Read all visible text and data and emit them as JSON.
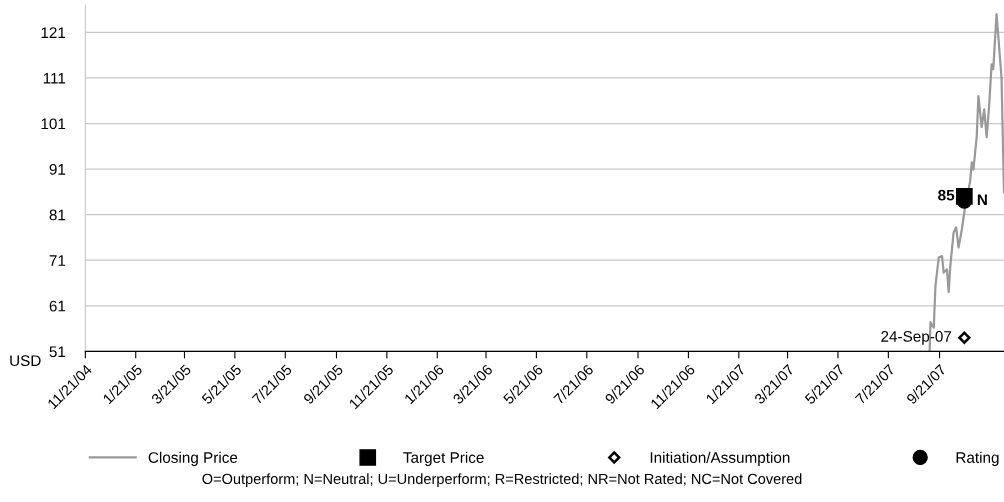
{
  "chart_data": {
    "type": "line",
    "ylabel": "USD",
    "xlim": [
      "2004-11-21",
      "2007-12-08"
    ],
    "xticks": [
      {
        "value": "2004-11-21",
        "label": "11/21/04"
      },
      {
        "value": "2005-01-21",
        "label": "1/21/05"
      },
      {
        "value": "2005-03-21",
        "label": "3/21/05"
      },
      {
        "value": "2005-05-21",
        "label": "5/21/05"
      },
      {
        "value": "2005-07-21",
        "label": "7/21/05"
      },
      {
        "value": "2005-09-21",
        "label": "9/21/05"
      },
      {
        "value": "2005-11-21",
        "label": "11/21/05"
      },
      {
        "value": "2006-01-21",
        "label": "1/21/06"
      },
      {
        "value": "2006-03-21",
        "label": "3/21/06"
      },
      {
        "value": "2006-05-21",
        "label": "5/21/06"
      },
      {
        "value": "2006-07-21",
        "label": "7/21/06"
      },
      {
        "value": "2006-09-21",
        "label": "9/21/06"
      },
      {
        "value": "2006-11-21",
        "label": "11/21/06"
      },
      {
        "value": "2007-01-21",
        "label": "1/21/07"
      },
      {
        "value": "2007-03-21",
        "label": "3/21/07"
      },
      {
        "value": "2007-05-21",
        "label": "5/21/07"
      },
      {
        "value": "2007-07-21",
        "label": "7/21/07"
      },
      {
        "value": "2007-09-21",
        "label": "9/21/07"
      }
    ],
    "ylim": [
      51,
      127
    ],
    "yticks": [
      51,
      61,
      71,
      81,
      91,
      101,
      111,
      121
    ],
    "grid": "y",
    "legend": "bottom",
    "series": [
      {
        "name": "Closing Price",
        "color": "#999999",
        "marker": "none",
        "x": [
          "2007-09-09",
          "2007-09-10",
          "2007-09-14",
          "2007-09-16",
          "2007-09-20",
          "2007-09-24",
          "2007-09-26",
          "2007-09-30",
          "2007-10-02",
          "2007-10-04",
          "2007-10-08",
          "2007-10-11",
          "2007-10-14",
          "2007-10-18",
          "2007-10-22",
          "2007-10-28",
          "2007-10-30",
          "2007-11-01",
          "2007-11-05",
          "2007-11-07",
          "2007-11-11",
          "2007-11-14",
          "2007-11-17",
          "2007-11-20",
          "2007-11-23",
          "2007-11-25",
          "2007-11-29",
          "2007-12-05",
          "2007-12-08"
        ],
        "values": [
          51,
          57.4,
          56.2,
          65.3,
          71.6,
          71.9,
          68.3,
          69,
          64,
          69.7,
          77.1,
          78.2,
          73.8,
          77.8,
          82.8,
          88.3,
          92.5,
          90.9,
          98.2,
          107,
          100.2,
          104.1,
          98,
          104.8,
          114,
          112.9,
          125,
          111.1,
          85.9
        ]
      },
      {
        "name": "Target Price",
        "type": "scatter",
        "color": "#000000",
        "marker": "square",
        "x": [
          "2007-10-21"
        ],
        "values": [
          85
        ],
        "value_labels": [
          "85"
        ]
      },
      {
        "name": "Initiation/Assumption",
        "type": "scatter",
        "color": "#000000",
        "marker": "diamond",
        "x": [
          "2007-10-21"
        ],
        "values": [
          54
        ],
        "value_labels": [
          "24-Sep-07"
        ]
      },
      {
        "name": "Rating",
        "type": "scatter",
        "color": "#000000",
        "marker": "circle",
        "x": [
          "2007-10-21"
        ],
        "values": [
          84
        ],
        "value_labels": [
          "N"
        ]
      }
    ],
    "annotations": [
      "O=Outperform; N=Neutral; U=Underperform; R=Restricted; NR=Not Rated; NC=Not Covered"
    ]
  }
}
